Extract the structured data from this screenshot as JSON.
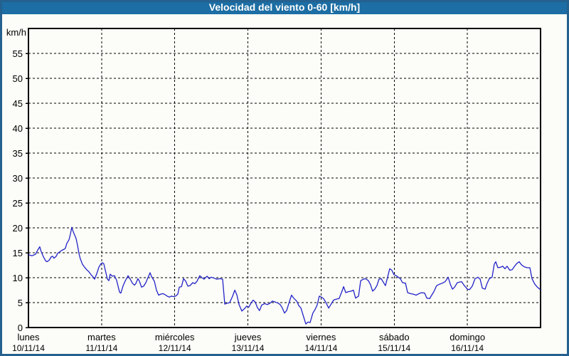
{
  "title_bar": {
    "title": "Velocidad del viento 0-60 [km/h]"
  },
  "colors": {
    "title_bar_bg": "#1C6EA4",
    "title_text": "#FFFFFF",
    "frame_border": "#25618F",
    "background": "#FCFDF8",
    "grid": "#000000",
    "axis_text": "#000000",
    "line": "#2323C8"
  },
  "chart_data": {
    "type": "line",
    "title": "Velocidad del viento 0-60 [km/h]",
    "unit_label": "km/h",
    "ylabel": "km/h",
    "ylim": [
      0,
      60
    ],
    "ytick_step": 5,
    "yticks": [
      0,
      5,
      10,
      15,
      20,
      25,
      30,
      35,
      40,
      45,
      50,
      55
    ],
    "x_range_hours": [
      0,
      168
    ],
    "grid_style": "dashed",
    "legend": "none",
    "x_days": [
      {
        "name": "lunes",
        "date": "10/11/14"
      },
      {
        "name": "martes",
        "date": "11/11/14"
      },
      {
        "name": "miércoles",
        "date": "12/11/14"
      },
      {
        "name": "jueves",
        "date": "13/11/14"
      },
      {
        "name": "viernes",
        "date": "14/11/14"
      },
      {
        "name": "sábado",
        "date": "15/11/14"
      },
      {
        "name": "domingo",
        "date": "16/11/14"
      }
    ],
    "series": [
      {
        "name": "Velocidad del viento",
        "unit": "km/h",
        "color": "#2323C8",
        "points_hours_kmh": [
          [
            0.0,
            14.6
          ],
          [
            1.2,
            14.4
          ],
          [
            2.3,
            14.7
          ],
          [
            3.0,
            15.5
          ],
          [
            3.7,
            16.2
          ],
          [
            4.2,
            15.2
          ],
          [
            4.9,
            14.2
          ],
          [
            5.6,
            13.4
          ],
          [
            6.1,
            13.2
          ],
          [
            6.8,
            13.5
          ],
          [
            7.5,
            14.2
          ],
          [
            7.9,
            14.3
          ],
          [
            8.4,
            13.9
          ],
          [
            9.1,
            14.3
          ],
          [
            9.6,
            14.9
          ],
          [
            10.3,
            15.2
          ],
          [
            11.0,
            15.5
          ],
          [
            11.7,
            15.7
          ],
          [
            12.1,
            15.9
          ],
          [
            12.6,
            16.9
          ],
          [
            13.3,
            17.6
          ],
          [
            13.8,
            18.8
          ],
          [
            14.2,
            20.1
          ],
          [
            14.7,
            19.2
          ],
          [
            15.2,
            18.5
          ],
          [
            15.6,
            17.9
          ],
          [
            16.1,
            16.5
          ],
          [
            16.6,
            14.8
          ],
          [
            17.0,
            13.8
          ],
          [
            17.7,
            12.7
          ],
          [
            18.4,
            12.1
          ],
          [
            19.1,
            11.6
          ],
          [
            19.8,
            11.2
          ],
          [
            20.5,
            10.6
          ],
          [
            21.0,
            10.3
          ],
          [
            21.7,
            9.7
          ],
          [
            22.4,
            10.8
          ],
          [
            23.1,
            12.1
          ],
          [
            23.8,
            12.8
          ],
          [
            24.3,
            13.0
          ],
          [
            24.7,
            12.8
          ],
          [
            25.4,
            11.0
          ],
          [
            25.9,
            9.7
          ],
          [
            26.4,
            9.4
          ],
          [
            26.8,
            10.7
          ],
          [
            27.5,
            10.3
          ],
          [
            28.2,
            10.4
          ],
          [
            28.9,
            9.5
          ],
          [
            29.9,
            7.1
          ],
          [
            30.3,
            6.9
          ],
          [
            31.0,
            8.3
          ],
          [
            31.7,
            9.3
          ],
          [
            32.7,
            10.4
          ],
          [
            33.4,
            9.7
          ],
          [
            34.1,
            8.9
          ],
          [
            34.8,
            8.5
          ],
          [
            35.2,
            8.8
          ],
          [
            35.9,
            9.8
          ],
          [
            36.4,
            9.3
          ],
          [
            37.1,
            8.1
          ],
          [
            37.8,
            8.3
          ],
          [
            38.5,
            9.0
          ],
          [
            39.2,
            10.0
          ],
          [
            39.9,
            11.0
          ],
          [
            40.4,
            10.2
          ],
          [
            41.3,
            9.3
          ],
          [
            42.0,
            7.5
          ],
          [
            42.7,
            6.5
          ],
          [
            43.4,
            6.7
          ],
          [
            44.1,
            6.8
          ],
          [
            44.8,
            6.6
          ],
          [
            45.5,
            6.3
          ],
          [
            46.2,
            6.1
          ],
          [
            46.9,
            6.3
          ],
          [
            47.6,
            6.2
          ],
          [
            48.3,
            6.3
          ],
          [
            49.0,
            6.7
          ],
          [
            49.5,
            8.1
          ],
          [
            50.2,
            8.2
          ],
          [
            50.9,
            9.8
          ],
          [
            51.6,
            9.3
          ],
          [
            52.3,
            8.3
          ],
          [
            53.0,
            8.4
          ],
          [
            53.9,
            9.0
          ],
          [
            54.6,
            8.8
          ],
          [
            55.3,
            9.3
          ],
          [
            56.2,
            10.4
          ],
          [
            56.9,
            10.0
          ],
          [
            57.6,
            9.7
          ],
          [
            58.6,
            10.3
          ],
          [
            59.3,
            9.8
          ],
          [
            60.0,
            10.1
          ],
          [
            60.9,
            9.9
          ],
          [
            61.8,
            9.7
          ],
          [
            62.8,
            9.8
          ],
          [
            63.7,
            9.7
          ],
          [
            64.4,
            4.7
          ],
          [
            65.3,
            4.9
          ],
          [
            66.0,
            5.0
          ],
          [
            67.0,
            6.3
          ],
          [
            67.7,
            7.5
          ],
          [
            68.4,
            6.5
          ],
          [
            69.1,
            4.6
          ],
          [
            70.0,
            3.3
          ],
          [
            70.9,
            3.8
          ],
          [
            71.6,
            4.3
          ],
          [
            72.3,
            4.1
          ],
          [
            73.0,
            4.9
          ],
          [
            73.7,
            5.5
          ],
          [
            74.4,
            5.1
          ],
          [
            75.1,
            4.0
          ],
          [
            75.8,
            3.4
          ],
          [
            76.5,
            4.5
          ],
          [
            77.5,
            4.8
          ],
          [
            78.4,
            4.6
          ],
          [
            79.3,
            4.9
          ],
          [
            80.0,
            5.3
          ],
          [
            81.0,
            5.1
          ],
          [
            81.9,
            4.9
          ],
          [
            82.6,
            4.6
          ],
          [
            83.3,
            3.9
          ],
          [
            84.0,
            2.9
          ],
          [
            84.7,
            3.4
          ],
          [
            85.4,
            4.8
          ],
          [
            86.3,
            6.5
          ],
          [
            87.0,
            5.9
          ],
          [
            88.0,
            5.3
          ],
          [
            88.7,
            4.4
          ],
          [
            89.4,
            3.9
          ],
          [
            90.1,
            2.5
          ],
          [
            91.0,
            0.7
          ],
          [
            91.7,
            1.1
          ],
          [
            92.4,
            1.0
          ],
          [
            93.3,
            2.9
          ],
          [
            94.0,
            3.6
          ],
          [
            94.7,
            4.5
          ],
          [
            95.4,
            6.3
          ],
          [
            96.1,
            6.1
          ],
          [
            96.8,
            5.8
          ],
          [
            97.5,
            5.1
          ],
          [
            98.5,
            3.9
          ],
          [
            99.2,
            4.6
          ],
          [
            100.1,
            5.5
          ],
          [
            101.0,
            5.7
          ],
          [
            101.9,
            5.8
          ],
          [
            102.7,
            7.0
          ],
          [
            103.4,
            8.2
          ],
          [
            104.1,
            7.0
          ],
          [
            105.0,
            7.2
          ],
          [
            105.9,
            7.3
          ],
          [
            106.6,
            7.5
          ],
          [
            107.3,
            5.9
          ],
          [
            108.3,
            6.3
          ],
          [
            109.0,
            9.4
          ],
          [
            109.9,
            9.7
          ],
          [
            110.6,
            9.8
          ],
          [
            111.5,
            9.4
          ],
          [
            112.2,
            8.6
          ],
          [
            112.9,
            7.3
          ],
          [
            113.6,
            7.7
          ],
          [
            114.3,
            8.4
          ],
          [
            115.0,
            9.7
          ],
          [
            115.7,
            9.8
          ],
          [
            116.4,
            9.1
          ],
          [
            117.1,
            8.4
          ],
          [
            117.8,
            10.1
          ],
          [
            118.5,
            11.8
          ],
          [
            119.2,
            11.5
          ],
          [
            119.9,
            10.6
          ],
          [
            120.6,
            10.4
          ],
          [
            121.3,
            10.1
          ],
          [
            122.0,
            9.8
          ],
          [
            122.7,
            9.0
          ],
          [
            123.7,
            8.9
          ],
          [
            124.4,
            7.0
          ],
          [
            125.3,
            6.8
          ],
          [
            126.2,
            6.7
          ],
          [
            127.2,
            6.5
          ],
          [
            128.1,
            6.8
          ],
          [
            129.0,
            7.0
          ],
          [
            130.0,
            6.9
          ],
          [
            130.7,
            5.9
          ],
          [
            131.6,
            5.8
          ],
          [
            132.3,
            6.5
          ],
          [
            133.0,
            7.2
          ],
          [
            133.9,
            8.4
          ],
          [
            134.9,
            8.7
          ],
          [
            135.8,
            8.9
          ],
          [
            136.7,
            9.2
          ],
          [
            137.7,
            10.1
          ],
          [
            138.4,
            8.7
          ],
          [
            139.1,
            7.7
          ],
          [
            139.8,
            8.1
          ],
          [
            140.7,
            9.0
          ],
          [
            141.4,
            9.1
          ],
          [
            142.1,
            9.2
          ],
          [
            143.0,
            8.4
          ],
          [
            144.0,
            7.7
          ],
          [
            144.7,
            7.6
          ],
          [
            145.6,
            8.3
          ],
          [
            146.5,
            9.8
          ],
          [
            147.5,
            10.1
          ],
          [
            148.2,
            9.7
          ],
          [
            148.9,
            7.9
          ],
          [
            149.8,
            7.7
          ],
          [
            150.5,
            8.9
          ],
          [
            151.2,
            9.8
          ],
          [
            152.1,
            10.1
          ],
          [
            152.8,
            12.7
          ],
          [
            153.3,
            13.2
          ],
          [
            154.0,
            12.0
          ],
          [
            154.9,
            12.1
          ],
          [
            155.6,
            12.3
          ],
          [
            156.3,
            11.8
          ],
          [
            157.0,
            12.3
          ],
          [
            157.9,
            11.5
          ],
          [
            158.7,
            11.6
          ],
          [
            159.6,
            12.4
          ],
          [
            160.3,
            12.9
          ],
          [
            161.0,
            13.2
          ],
          [
            161.7,
            12.6
          ],
          [
            162.6,
            12.2
          ],
          [
            163.6,
            12.0
          ],
          [
            164.5,
            12.0
          ],
          [
            165.2,
            9.8
          ],
          [
            166.1,
            8.7
          ],
          [
            166.8,
            8.2
          ],
          [
            167.5,
            7.8
          ],
          [
            168.0,
            7.6
          ]
        ]
      }
    ]
  }
}
